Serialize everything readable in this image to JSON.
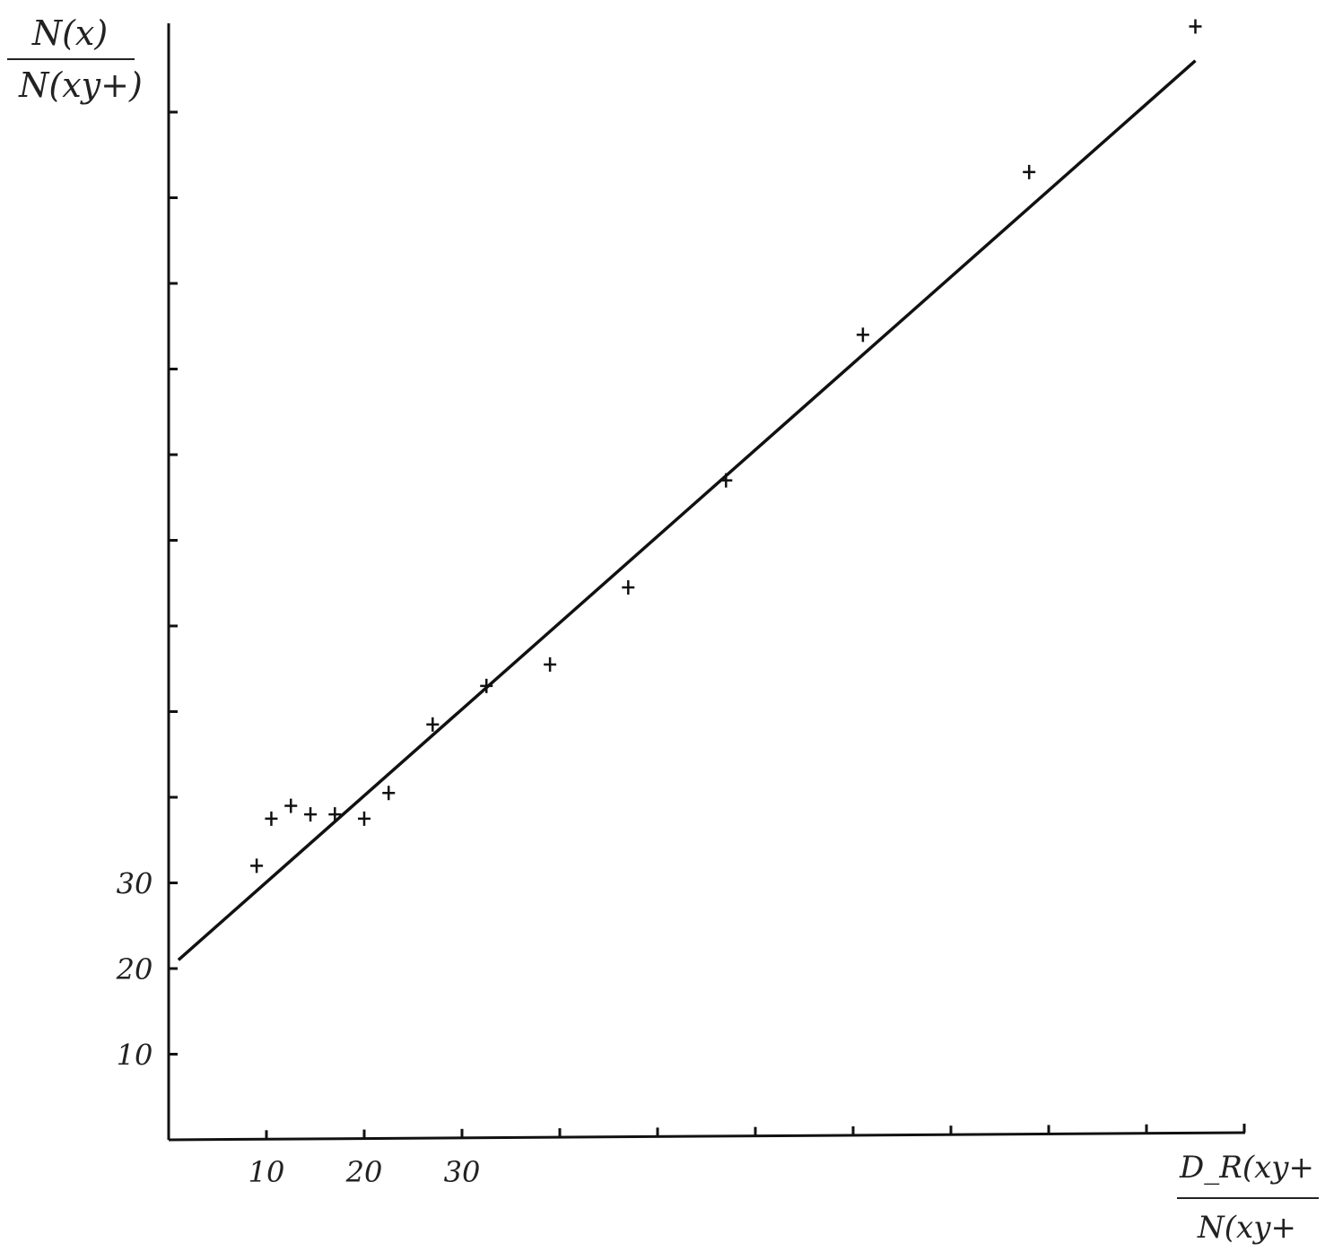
{
  "chart_data": {
    "type": "scatter",
    "title": "",
    "ylabel": {
      "numerator": "N(x)",
      "denominator": "N(xy+)"
    },
    "xlabel": {
      "numerator": "D_R(xy+",
      "denominator": "N(xy+"
    },
    "xlim": [
      0,
      110
    ],
    "ylim": [
      0,
      130
    ],
    "x_ticks": [
      10,
      20,
      30,
      40,
      50,
      60,
      70,
      80,
      90,
      100,
      110
    ],
    "x_tick_labels": [
      {
        "value": 10,
        "label": "10"
      },
      {
        "value": 20,
        "label": "20"
      },
      {
        "value": 30,
        "label": "30"
      }
    ],
    "y_ticks": [
      10,
      20,
      30,
      40,
      50,
      60,
      70,
      80,
      90,
      100,
      110,
      120
    ],
    "y_tick_labels": [
      {
        "value": 10,
        "label": "10"
      },
      {
        "value": 20,
        "label": "20"
      },
      {
        "value": 30,
        "label": "30"
      }
    ],
    "grid": false,
    "points": [
      {
        "x": 9,
        "y": 32
      },
      {
        "x": 10.5,
        "y": 37.5
      },
      {
        "x": 12.5,
        "y": 39
      },
      {
        "x": 14.5,
        "y": 38
      },
      {
        "x": 17,
        "y": 38
      },
      {
        "x": 20,
        "y": 37.5
      },
      {
        "x": 22.5,
        "y": 40.5
      },
      {
        "x": 27,
        "y": 48.5
      },
      {
        "x": 32.5,
        "y": 53
      },
      {
        "x": 39,
        "y": 55.5
      },
      {
        "x": 47,
        "y": 64.5
      },
      {
        "x": 57,
        "y": 77
      },
      {
        "x": 71,
        "y": 94
      },
      {
        "x": 88,
        "y": 113
      },
      {
        "x": 105,
        "y": 130
      }
    ],
    "fit_line": {
      "x": [
        1,
        105
      ],
      "y": [
        21,
        126
      ]
    },
    "colors": {
      "ink": "#111111"
    }
  }
}
